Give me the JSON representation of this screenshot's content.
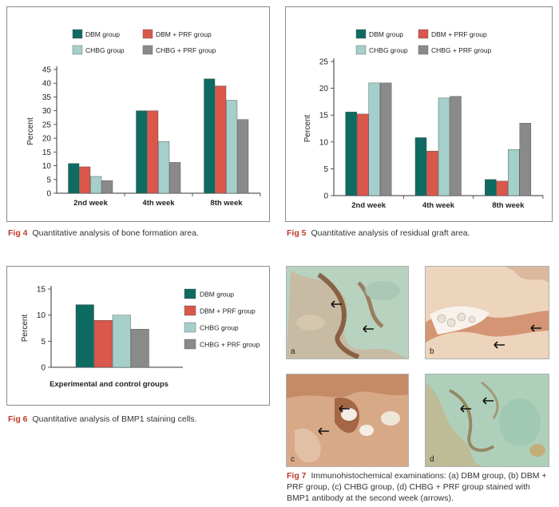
{
  "colors": {
    "dbm": "#0e6b62",
    "dbm_prf": "#d9574b",
    "chbg": "#a4cfcb",
    "chbg_prf": "#8a8a8a",
    "caption_fig": "#c0392b"
  },
  "chart_data": [
    {
      "id": "fig4",
      "type": "bar",
      "ylabel": "Percent",
      "xlabel": "",
      "ylim": [
        0,
        45
      ],
      "yticks": [
        0,
        5,
        10,
        15,
        20,
        25,
        30,
        35,
        40,
        45
      ],
      "categories": [
        "2nd week",
        "4th week",
        "8th week"
      ],
      "legend": [
        "DBM group",
        "DBM + PRF group",
        "CHBG group",
        "CHBG + PRF group"
      ],
      "series": [
        {
          "name": "DBM group",
          "values": [
            10.8,
            30,
            41.6
          ]
        },
        {
          "name": "DBM + PRF group",
          "values": [
            9.6,
            30,
            39
          ]
        },
        {
          "name": "CHBG group",
          "values": [
            6.1,
            18.8,
            33.8
          ]
        },
        {
          "name": "CHBG + PRF group",
          "values": [
            4.6,
            11.2,
            26.8
          ]
        }
      ]
    },
    {
      "id": "fig5",
      "type": "bar",
      "ylabel": "Percent",
      "xlabel": "",
      "ylim": [
        0,
        25
      ],
      "yticks": [
        0,
        5,
        10,
        15,
        20,
        25
      ],
      "categories": [
        "2nd week",
        "4th week",
        "8th week"
      ],
      "legend": [
        "DBM group",
        "DBM + PRF group",
        "CHBG group",
        "CHBG + PRF group"
      ],
      "series": [
        {
          "name": "DBM group",
          "values": [
            15.6,
            10.8,
            3
          ]
        },
        {
          "name": "DBM + PRF group",
          "values": [
            15.2,
            8.3,
            2.7
          ]
        },
        {
          "name": "CHBG group",
          "values": [
            21,
            18.2,
            8.6
          ]
        },
        {
          "name": "CHBG + PRF group",
          "values": [
            21,
            18.5,
            13.5
          ]
        }
      ]
    },
    {
      "id": "fig6",
      "type": "bar",
      "ylabel": "Percent",
      "xlabel": "Experimental and control groups",
      "ylim": [
        0,
        15
      ],
      "yticks": [
        0,
        5,
        10,
        15
      ],
      "categories": [
        "DBM group",
        "DBM + PRF group",
        "CHBG group",
        "CHBG + PRF group"
      ],
      "legend": [
        "DBM group",
        "DBM + PRF group",
        "CHBG group",
        "CHBG + PRF group"
      ],
      "series": [
        {
          "name": "Groups",
          "values": [
            12,
            9,
            10,
            7.3
          ]
        }
      ]
    }
  ],
  "captions": {
    "fig4_num": "Fig 4",
    "fig4_text": "Quantitative analysis of bone formation area.",
    "fig5_num": "Fig 5",
    "fig5_text": "Quantitative analysis of residual graft area.",
    "fig6_num": "Fig 6",
    "fig6_text": "Quantitative analysis of BMP1 staining cells.",
    "fig7_num": "Fig 7",
    "fig7_text": "Immunohistochemical examinations: (a) DBM group, (b) DBM + PRF group, (c) CHBG group, (d) CHBG + PRF group stained with BMP1 antibody at the second week (arrows)."
  },
  "photos": [
    {
      "label": "a"
    },
    {
      "label": "b"
    },
    {
      "label": "c"
    },
    {
      "label": "d"
    }
  ]
}
